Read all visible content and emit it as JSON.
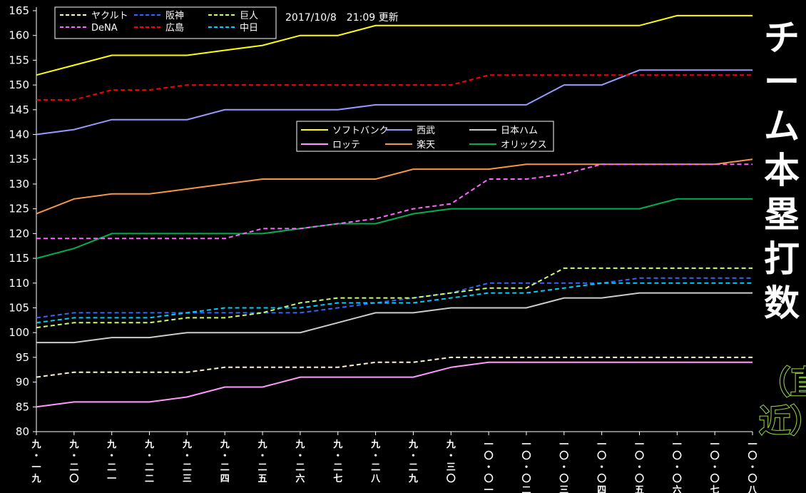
{
  "side_title": "チーム本塁打数",
  "side_subtitle": "（直近）",
  "update_text": "2017/10/8　21:09 更新",
  "chart_data": {
    "type": "line",
    "ylim": [
      80,
      165
    ],
    "yticks": [
      80,
      85,
      90,
      95,
      100,
      105,
      110,
      115,
      120,
      125,
      130,
      135,
      140,
      145,
      150,
      155,
      160,
      165
    ],
    "categories": [
      "九・一九",
      "九・二〇",
      "九・二一",
      "九・二二",
      "九・二三",
      "九・二四",
      "九・二五",
      "九・二六",
      "九・二七",
      "九・二八",
      "九・二九",
      "九・三〇",
      "一〇・〇一",
      "一〇・〇二",
      "一〇・〇三",
      "一〇・〇四",
      "一〇・〇五",
      "一〇・〇六",
      "一〇・〇七",
      "一〇・〇八"
    ],
    "grid": false,
    "legends": [
      {
        "placement": "top-left",
        "entries": [
          "ヤクルト",
          "阪神",
          "巨人",
          "DeNA",
          "広島",
          "中日"
        ]
      },
      {
        "placement": "center",
        "entries": [
          "ソフトバンク",
          "西武",
          "日本ハム",
          "ロッテ",
          "楽天",
          "オリックス"
        ]
      }
    ],
    "series": [
      {
        "name": "ソフトバンク",
        "color": "#ffff00",
        "dash": false,
        "values": [
          152,
          154,
          156,
          156,
          156,
          157,
          158,
          160,
          160,
          162,
          162,
          162,
          162,
          162,
          162,
          162,
          162,
          164,
          164,
          164
        ]
      },
      {
        "name": "西武",
        "color": "#9999ff",
        "dash": false,
        "values": [
          140,
          141,
          143,
          143,
          143,
          145,
          145,
          145,
          145,
          146,
          146,
          146,
          146,
          146,
          150,
          150,
          153,
          153,
          153,
          153
        ]
      },
      {
        "name": "日本ハム",
        "color": "#cccccc",
        "dash": false,
        "values": [
          98,
          98,
          99,
          99,
          100,
          100,
          100,
          100,
          102,
          104,
          104,
          105,
          105,
          105,
          107,
          107,
          108,
          108,
          108,
          108
        ]
      },
      {
        "name": "ロッテ",
        "color": "#ff99ff",
        "dash": false,
        "values": [
          85,
          86,
          86,
          86,
          87,
          89,
          89,
          91,
          91,
          91,
          91,
          93,
          94,
          94,
          94,
          94,
          94,
          94,
          94,
          94
        ]
      },
      {
        "name": "楽天",
        "color": "#f79646",
        "dash": false,
        "values": [
          124,
          127,
          128,
          128,
          129,
          130,
          131,
          131,
          131,
          131,
          133,
          133,
          133,
          134,
          134,
          134,
          134,
          134,
          134,
          135
        ]
      },
      {
        "name": "オリックス",
        "color": "#00b050",
        "dash": false,
        "values": [
          115,
          117,
          120,
          120,
          120,
          120,
          120,
          121,
          122,
          122,
          124,
          125,
          125,
          125,
          125,
          125,
          125,
          127,
          127,
          127
        ]
      },
      {
        "name": "ヤクルト",
        "color": "#fff5cc",
        "dash": true,
        "values": [
          91,
          92,
          92,
          92,
          92,
          93,
          93,
          93,
          93,
          94,
          94,
          95,
          95,
          95,
          95,
          95,
          95,
          95,
          95,
          95
        ]
      },
      {
        "name": "阪神",
        "color": "#3366ff",
        "dash": true,
        "values": [
          103,
          104,
          104,
          104,
          104,
          104,
          104,
          104,
          105,
          106,
          107,
          108,
          110,
          110,
          110,
          110,
          111,
          111,
          111,
          111
        ]
      },
      {
        "name": "巨人",
        "color": "#ccff66",
        "dash": true,
        "values": [
          101,
          102,
          102,
          102,
          103,
          103,
          104,
          106,
          107,
          107,
          107,
          108,
          109,
          109,
          113,
          113,
          113,
          113,
          113,
          113
        ]
      },
      {
        "name": "DeNA",
        "color": "#ff66ff",
        "dash": true,
        "values": [
          119,
          119,
          119,
          119,
          119,
          119,
          121,
          121,
          122,
          123,
          125,
          126,
          131,
          131,
          132,
          134,
          134,
          134,
          134,
          134
        ]
      },
      {
        "name": "広島",
        "color": "#ff0000",
        "dash": true,
        "values": [
          147,
          147,
          149,
          149,
          150,
          150,
          150,
          150,
          150,
          150,
          150,
          150,
          152,
          152,
          152,
          152,
          152,
          152,
          152,
          152
        ]
      },
      {
        "name": "中日",
        "color": "#00ccff",
        "dash": true,
        "values": [
          102,
          103,
          103,
          103,
          104,
          105,
          105,
          105,
          106,
          106,
          106,
          107,
          108,
          108,
          109,
          110,
          110,
          110,
          110,
          110
        ]
      }
    ]
  }
}
